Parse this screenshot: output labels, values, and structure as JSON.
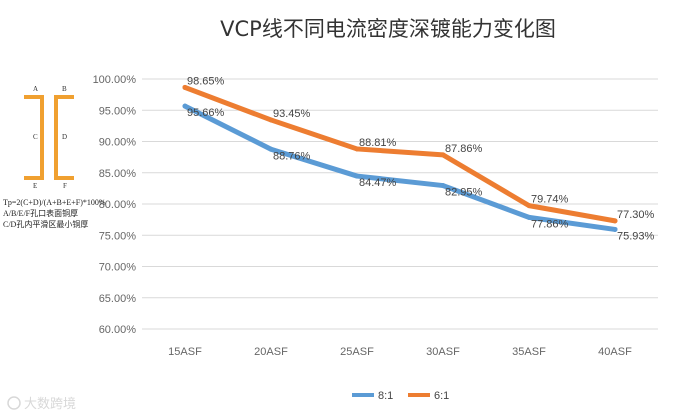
{
  "chart_data": {
    "type": "line",
    "title": "VCP线不同电流密度深镀能力变化图",
    "categories": [
      "15ASF",
      "20ASF",
      "25ASF",
      "30ASF",
      "35ASF",
      "40ASF"
    ],
    "series": [
      {
        "name": "8:1",
        "color": "#5b9bd5",
        "values": [
          95.66,
          88.76,
          84.47,
          82.95,
          77.86,
          75.93
        ],
        "labels": [
          "95.66%",
          "88.76%",
          "84.47%",
          "82.95%",
          "77.86%",
          "75.93%"
        ]
      },
      {
        "name": "6:1",
        "color": "#ed7d31",
        "values": [
          98.65,
          93.45,
          88.81,
          87.86,
          79.74,
          77.3
        ],
        "labels": [
          "98.65%",
          "93.45%",
          "88.81%",
          "87.86%",
          "79.74%",
          "77.30%"
        ]
      }
    ],
    "ylim": [
      60,
      100
    ],
    "yticks": [
      "100.00%",
      "95.00%",
      "90.00%",
      "85.00%",
      "80.00%",
      "75.00%",
      "70.00%",
      "65.00%",
      "60.00%"
    ],
    "grid": true,
    "legend_position": "bottom"
  },
  "diagram": {
    "labels": [
      "A",
      "B",
      "C",
      "D",
      "E",
      "F"
    ],
    "formula": "Tp=2(C+D)/(A+B+E+F)*100%",
    "note1": "A/B/E/F孔口表面铜厚",
    "note2": "C/D孔内平滑区最小铜厚"
  },
  "watermark": "大数跨境"
}
